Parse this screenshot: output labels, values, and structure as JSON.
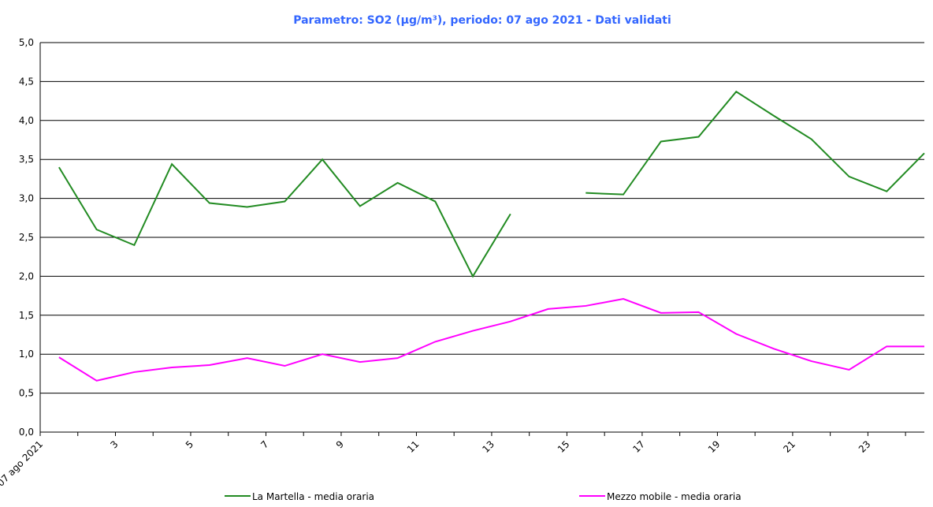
{
  "chart_data": {
    "type": "line",
    "title": "Parametro: SO2 (µg/m³), periodo: 07 ago 2021 - Dati validati",
    "categories": [
      "07 ago 2021",
      null,
      "3",
      null,
      "5",
      null,
      "7",
      null,
      "9",
      null,
      "11",
      null,
      "13",
      null,
      "15",
      null,
      "17",
      null,
      "19",
      null,
      "21",
      null,
      "23",
      null
    ],
    "series": [
      {
        "name": "La Martella - media oraria",
        "color": "#228b22",
        "values": [
          3.4,
          2.6,
          2.4,
          3.44,
          2.94,
          2.89,
          2.96,
          3.5,
          2.9,
          3.2,
          2.96,
          2.0,
          2.8,
          null,
          3.07,
          3.05,
          3.73,
          3.79,
          4.37,
          4.06,
          3.76,
          3.28,
          3.09,
          3.58
        ]
      },
      {
        "name": "Mezzo mobile - media oraria",
        "color": "#ff00ff",
        "values": [
          0.96,
          0.66,
          0.77,
          0.83,
          0.86,
          0.95,
          0.85,
          1.0,
          0.9,
          0.95,
          1.16,
          1.3,
          1.42,
          1.58,
          1.62,
          1.71,
          1.53,
          1.54,
          1.26,
          1.07,
          0.91,
          0.8,
          1.1,
          1.1
        ]
      }
    ],
    "ylim": [
      0,
      5
    ],
    "yticks": [
      {
        "value": 0,
        "label": "0,0"
      },
      {
        "value": 0.5,
        "label": "0,5"
      },
      {
        "value": 1,
        "label": "1,0"
      },
      {
        "value": 1.5,
        "label": "1,5"
      },
      {
        "value": 2,
        "label": "2,0"
      },
      {
        "value": 2.5,
        "label": "2,5"
      },
      {
        "value": 3,
        "label": "3,0"
      },
      {
        "value": 3.5,
        "label": "3,5"
      },
      {
        "value": 4,
        "label": "4,0"
      },
      {
        "value": 4.5,
        "label": "4,5"
      },
      {
        "value": 5,
        "label": "5,0"
      }
    ],
    "grid": true
  }
}
